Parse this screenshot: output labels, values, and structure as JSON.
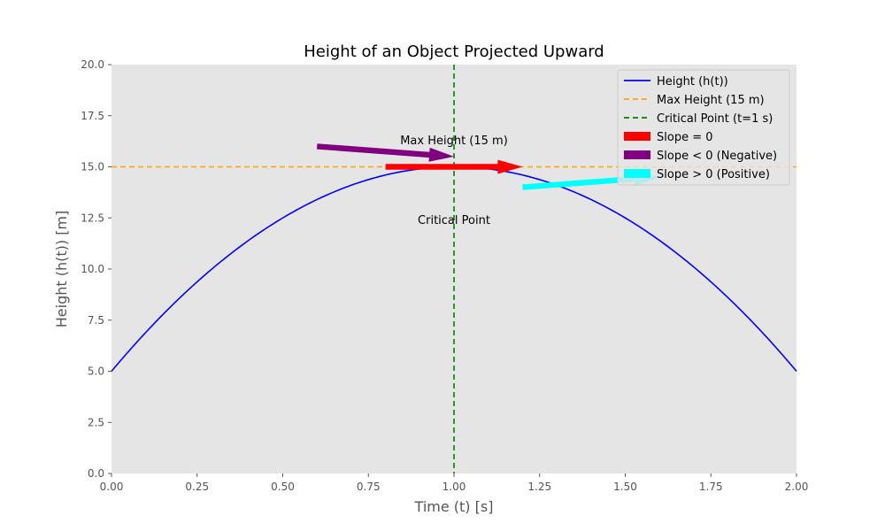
{
  "chart_data": {
    "type": "line",
    "title": "Height of an Object Projected Upward",
    "xlabel": "Time (t) [s]",
    "ylabel": "Height (h(t)) [m]",
    "xlim": [
      0,
      2
    ],
    "ylim": [
      0,
      20
    ],
    "xticks": [
      "0.00",
      "0.25",
      "0.50",
      "0.75",
      "1.00",
      "1.25",
      "1.50",
      "1.75",
      "2.00"
    ],
    "yticks": [
      "0.0",
      "2.5",
      "5.0",
      "7.5",
      "10.0",
      "12.5",
      "15.0",
      "17.5",
      "20.0"
    ],
    "xtick_values": [
      0,
      0.25,
      0.5,
      0.75,
      1.0,
      1.25,
      1.5,
      1.75,
      2.0
    ],
    "ytick_values": [
      0,
      2.5,
      5,
      7.5,
      10,
      12.5,
      15,
      17.5,
      20
    ],
    "grid": false,
    "legend_position": "top-right",
    "series": [
      {
        "name": "Height (h(t))",
        "color": "#0000ff",
        "style": "solid",
        "x": [
          0,
          0.1,
          0.2,
          0.3,
          0.4,
          0.5,
          0.6,
          0.7,
          0.8,
          0.9,
          1.0,
          1.1,
          1.2,
          1.3,
          1.4,
          1.5,
          1.6,
          1.7,
          1.8,
          1.9,
          2.0
        ],
        "y": [
          5.0,
          6.9,
          8.6,
          10.1,
          11.4,
          12.5,
          13.4,
          14.1,
          14.6,
          14.9,
          15.0,
          14.9,
          14.6,
          14.1,
          13.4,
          12.5,
          11.4,
          10.1,
          8.6,
          6.9,
          5.0
        ]
      },
      {
        "name": "Max Height (15 m)",
        "color": "#ffa500",
        "style": "dashed",
        "orientation": "horizontal",
        "value": 15
      },
      {
        "name": "Critical Point (t=1 s)",
        "color": "#008000",
        "style": "dashed",
        "orientation": "vertical",
        "value": 1
      }
    ],
    "arrows": [
      {
        "name": "Slope = 0",
        "color": "#ff0000",
        "from": [
          0.8,
          15.0
        ],
        "to": [
          1.2,
          15.0
        ]
      },
      {
        "name": "Slope < 0 (Negative)",
        "color": "#800080",
        "from": [
          0.6,
          16.0
        ],
        "to": [
          1.0,
          15.5
        ]
      },
      {
        "name": "Slope > 0 (Positive)",
        "color": "#00ffff",
        "from": [
          1.2,
          14.0
        ],
        "to": [
          1.6,
          14.5
        ]
      }
    ],
    "annotations": [
      {
        "text": "Max Height (15 m)",
        "x": 1.0,
        "y": 16.1
      },
      {
        "text": "Critical Point",
        "x": 1.0,
        "y": 12.2
      }
    ],
    "legend": [
      {
        "label": "Height (h(t))",
        "kind": "line",
        "color": "#0000ff",
        "dash": false
      },
      {
        "label": "Max Height (15 m)",
        "kind": "line",
        "color": "#ffa500",
        "dash": true
      },
      {
        "label": "Critical Point (t=1 s)",
        "kind": "line",
        "color": "#008000",
        "dash": true
      },
      {
        "label": "Slope = 0",
        "kind": "patch",
        "color": "#ff0000"
      },
      {
        "label": "Slope < 0 (Negative)",
        "kind": "patch",
        "color": "#800080"
      },
      {
        "label": "Slope > 0 (Positive)",
        "kind": "patch",
        "color": "#00ffff"
      }
    ]
  }
}
